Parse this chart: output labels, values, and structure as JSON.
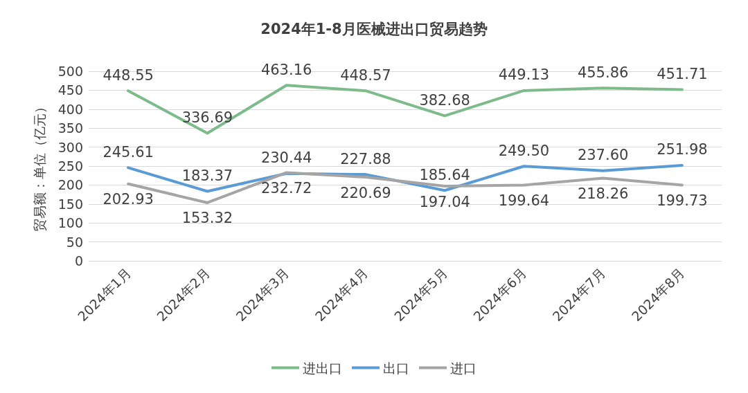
{
  "chart_data": {
    "type": "line",
    "title": "2024年1-8月医械进出口贸易趋势",
    "ylabel": "贸易额：单位（亿元）",
    "categories": [
      "2024年1月",
      "2024年2月",
      "2024年3月",
      "2024年4月",
      "2024年5月",
      "2024年6月",
      "2024年7月",
      "2024年8月"
    ],
    "series": [
      {
        "name": "进出口",
        "color": "#7dbb8a",
        "values": [
          448.55,
          336.69,
          463.16,
          448.57,
          382.68,
          449.13,
          455.86,
          451.71
        ],
        "value_labels": [
          "448.55",
          "336.69",
          "463.16",
          "448.57",
          "382.68",
          "449.13",
          "455.86",
          "451.71"
        ]
      },
      {
        "name": "出口",
        "color": "#5b9bd5",
        "values": [
          245.61,
          183.37,
          230.44,
          227.88,
          185.64,
          249.5,
          237.6,
          251.98
        ],
        "value_labels": [
          "245.61",
          "183.37",
          "230.44",
          "227.88",
          "185.64",
          "249.50",
          "237.60",
          "251.98"
        ]
      },
      {
        "name": "进口",
        "color": "#a5a5a5",
        "values": [
          202.93,
          153.32,
          232.72,
          220.69,
          197.04,
          199.64,
          218.26,
          199.73
        ],
        "value_labels": [
          "202.93",
          "153.32",
          "232.72",
          "220.69",
          "197.04",
          "199.64",
          "218.26",
          "199.73"
        ]
      }
    ],
    "ylim": [
      0,
      500
    ],
    "yticks": [
      0,
      50,
      100,
      150,
      200,
      250,
      300,
      350,
      400,
      450,
      500
    ],
    "grid": "y",
    "legend": "bottom",
    "marker": "none",
    "line_style": "solid"
  }
}
